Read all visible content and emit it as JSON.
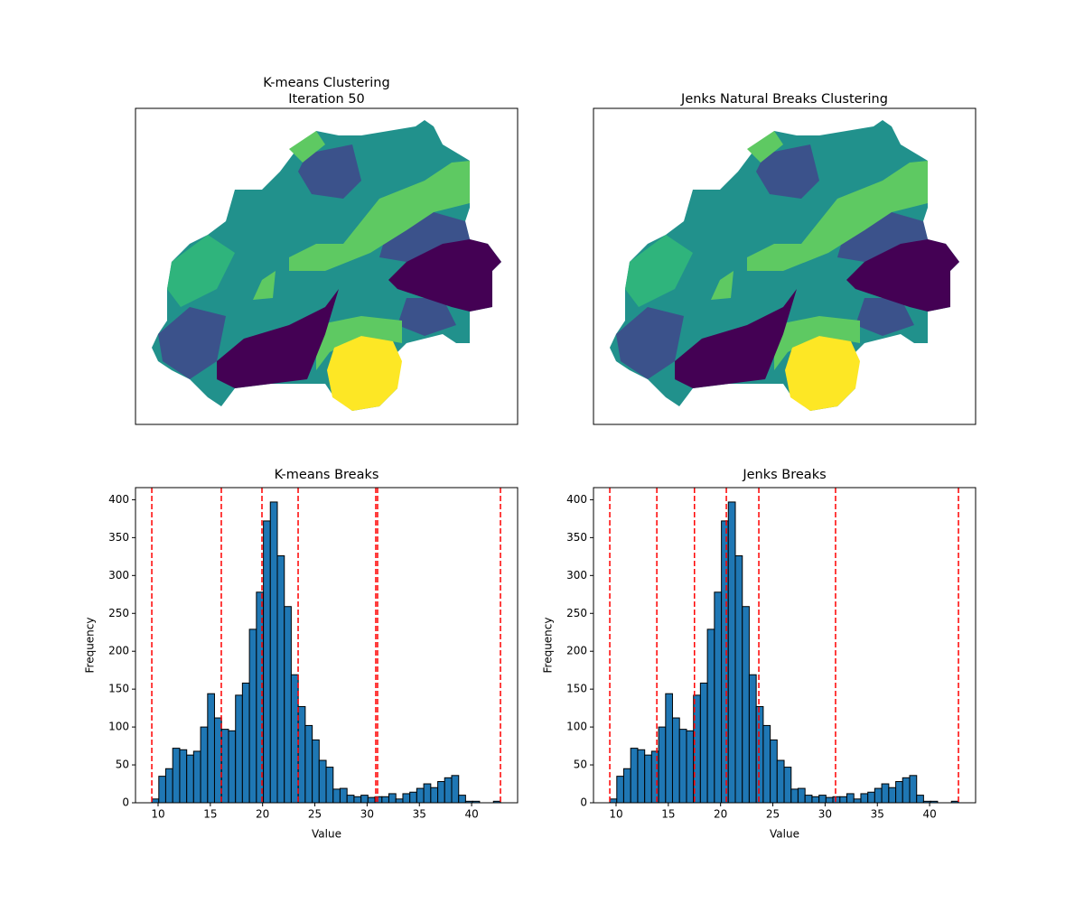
{
  "chart_data": [
    {
      "type": "scatter",
      "title": [
        "K-means Clustering",
        "Iteration 50"
      ]
    },
    {
      "type": "scatter",
      "title": [
        "Jenks Natural Breaks Clustering"
      ]
    },
    {
      "type": "histogram",
      "title": "K-means Breaks",
      "xlabel": "Value",
      "ylabel": "Frequency",
      "bins": [
        9.4,
        10.07,
        10.73,
        11.4,
        12.07,
        12.74,
        13.4,
        14.07,
        14.74,
        15.4,
        16.07,
        16.74,
        17.41,
        18.07,
        18.74,
        19.41,
        20.08,
        20.74,
        21.41,
        22.08,
        22.74,
        23.41,
        24.08,
        24.75,
        25.41,
        26.08,
        26.75,
        27.41,
        28.08,
        28.75,
        29.42,
        30.08,
        30.75,
        31.42,
        32.08,
        32.75,
        33.42,
        34.09,
        34.75,
        35.42,
        36.09,
        36.76,
        37.42,
        38.09,
        38.76,
        39.42,
        40.09,
        40.76,
        41.43,
        42.09,
        42.76
      ],
      "counts": [
        5,
        35,
        45,
        72,
        70,
        63,
        68,
        100,
        144,
        112,
        97,
        95,
        142,
        158,
        229,
        278,
        372,
        397,
        326,
        259,
        169,
        127,
        102,
        83,
        56,
        47,
        18,
        19,
        10,
        8,
        10,
        7,
        8,
        8,
        12,
        5,
        12,
        14,
        19,
        25,
        20,
        28,
        33,
        36,
        10,
        2,
        2,
        0,
        0,
        2
      ],
      "color": "#1f77b4",
      "edgecolor": "#000000",
      "breaks": [
        9.4,
        16.05,
        19.94,
        23.4,
        30.83,
        31.0,
        42.76
      ],
      "break_color": "#ff0000",
      "xlim": [
        7.84,
        44.4
      ],
      "ylim": [
        0,
        416
      ],
      "xticks": [
        10,
        15,
        20,
        25,
        30,
        35,
        40
      ],
      "yticks": [
        0,
        50,
        100,
        150,
        200,
        250,
        300,
        350,
        400
      ]
    },
    {
      "type": "histogram",
      "title": "Jenks Breaks",
      "xlabel": "Value",
      "ylabel": "Frequency",
      "bins": [
        9.4,
        10.07,
        10.73,
        11.4,
        12.07,
        12.74,
        13.4,
        14.07,
        14.74,
        15.4,
        16.07,
        16.74,
        17.41,
        18.07,
        18.74,
        19.41,
        20.08,
        20.74,
        21.41,
        22.08,
        22.74,
        23.41,
        24.08,
        24.75,
        25.41,
        26.08,
        26.75,
        27.41,
        28.08,
        28.75,
        29.42,
        30.08,
        30.75,
        31.42,
        32.08,
        32.75,
        33.42,
        34.09,
        34.75,
        35.42,
        36.09,
        36.76,
        37.42,
        38.09,
        38.76,
        39.42,
        40.09,
        40.76,
        41.43,
        42.09,
        42.76
      ],
      "counts": [
        5,
        35,
        45,
        72,
        70,
        63,
        68,
        100,
        144,
        112,
        97,
        95,
        142,
        158,
        229,
        278,
        372,
        397,
        326,
        259,
        169,
        127,
        102,
        83,
        56,
        47,
        18,
        19,
        10,
        8,
        10,
        7,
        8,
        8,
        12,
        5,
        12,
        14,
        19,
        25,
        20,
        28,
        33,
        36,
        10,
        2,
        2,
        0,
        0,
        2
      ],
      "color": "#1f77b4",
      "edgecolor": "#000000",
      "breaks": [
        9.4,
        13.9,
        17.5,
        20.55,
        23.66,
        31.0,
        42.76
      ],
      "break_color": "#ff0000",
      "xlim": [
        7.84,
        44.4
      ],
      "ylim": [
        0,
        416
      ],
      "xticks": [
        10,
        15,
        20,
        25,
        30,
        35,
        40
      ],
      "yticks": [
        0,
        50,
        100,
        150,
        200,
        250,
        300,
        350,
        400
      ]
    }
  ]
}
